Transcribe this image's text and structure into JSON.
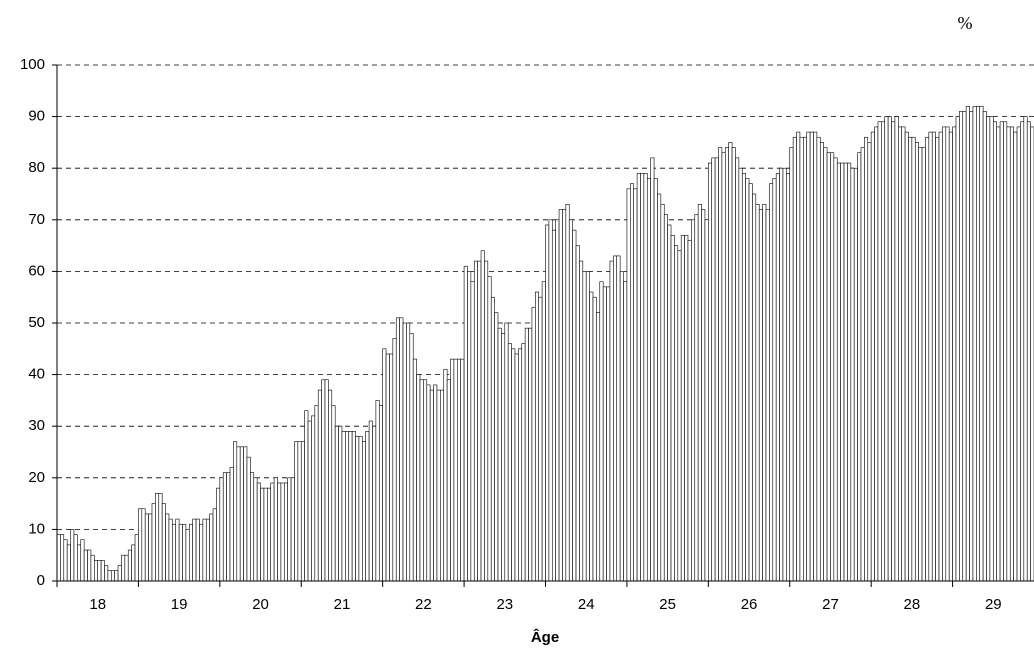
{
  "chart_data": {
    "type": "grouped-bar",
    "unit_label": "%",
    "x_label": "Âge",
    "categories": [
      "18",
      "19",
      "20",
      "21",
      "22",
      "23",
      "24",
      "25",
      "26",
      "27",
      "28",
      "29"
    ],
    "values": [
      [
        9,
        9,
        8,
        7,
        10,
        9,
        7,
        8,
        6,
        6,
        5,
        4,
        4,
        4,
        3,
        2,
        2,
        2,
        3,
        5,
        5,
        6,
        7,
        9
      ],
      [
        14,
        14,
        13,
        13,
        15,
        17,
        17,
        15,
        13,
        12,
        11,
        12,
        11,
        11,
        10,
        11,
        12,
        12,
        11,
        12,
        12,
        13,
        14,
        18
      ],
      [
        20,
        21,
        21,
        22,
        27,
        26,
        26,
        26,
        24,
        21,
        20,
        19,
        18,
        18,
        18,
        19,
        20,
        19,
        19,
        19,
        20,
        20,
        27,
        27
      ],
      [
        27,
        33,
        31,
        32,
        34,
        37,
        39,
        39,
        37,
        34,
        30,
        30,
        29,
        29,
        29,
        29,
        28,
        28,
        27,
        29,
        31,
        30,
        35,
        34
      ],
      [
        45,
        44,
        44,
        47,
        51,
        51,
        50,
        50,
        48,
        43,
        40,
        39,
        39,
        38,
        37,
        38,
        37,
        37,
        41,
        39,
        43,
        43,
        43,
        43
      ],
      [
        61,
        60,
        58,
        62,
        62,
        64,
        62,
        59,
        55,
        52,
        49,
        48,
        50,
        46,
        45,
        44,
        45,
        46,
        49,
        49,
        53,
        56,
        55,
        58
      ],
      [
        69,
        70,
        68,
        70,
        72,
        72,
        73,
        70,
        68,
        65,
        62,
        60,
        60,
        56,
        55,
        52,
        58,
        57,
        57,
        62,
        63,
        63,
        60,
        58
      ],
      [
        76,
        77,
        76,
        79,
        79,
        79,
        78,
        82,
        78,
        75,
        73,
        71,
        69,
        67,
        65,
        64,
        67,
        67,
        66,
        70,
        71,
        73,
        72,
        70
      ],
      [
        81,
        82,
        82,
        84,
        83,
        84,
        85,
        84,
        82,
        80,
        79,
        78,
        77,
        75,
        73,
        72,
        73,
        72,
        77,
        78,
        79,
        80,
        80,
        79
      ],
      [
        84,
        86,
        87,
        86,
        86,
        87,
        87,
        87,
        86,
        85,
        84,
        83,
        83,
        82,
        81,
        81,
        81,
        81,
        80,
        80,
        83,
        84,
        86,
        85
      ],
      [
        87,
        88,
        89,
        89,
        90,
        90,
        89,
        90,
        88,
        88,
        87,
        86,
        86,
        85,
        84,
        84,
        86,
        87,
        87,
        86,
        87,
        88,
        88,
        87
      ],
      [
        88,
        90,
        91,
        91,
        92,
        91,
        92,
        92,
        92,
        91,
        90,
        90,
        89,
        88,
        89,
        89,
        88,
        88,
        87,
        88,
        89,
        90,
        89,
        88
      ]
    ],
    "color": "#ffffff",
    "ylim": [
      0,
      100
    ],
    "yticks": [
      0,
      10,
      20,
      30,
      40,
      50,
      60,
      70,
      80,
      90,
      100
    ],
    "grid": true
  }
}
